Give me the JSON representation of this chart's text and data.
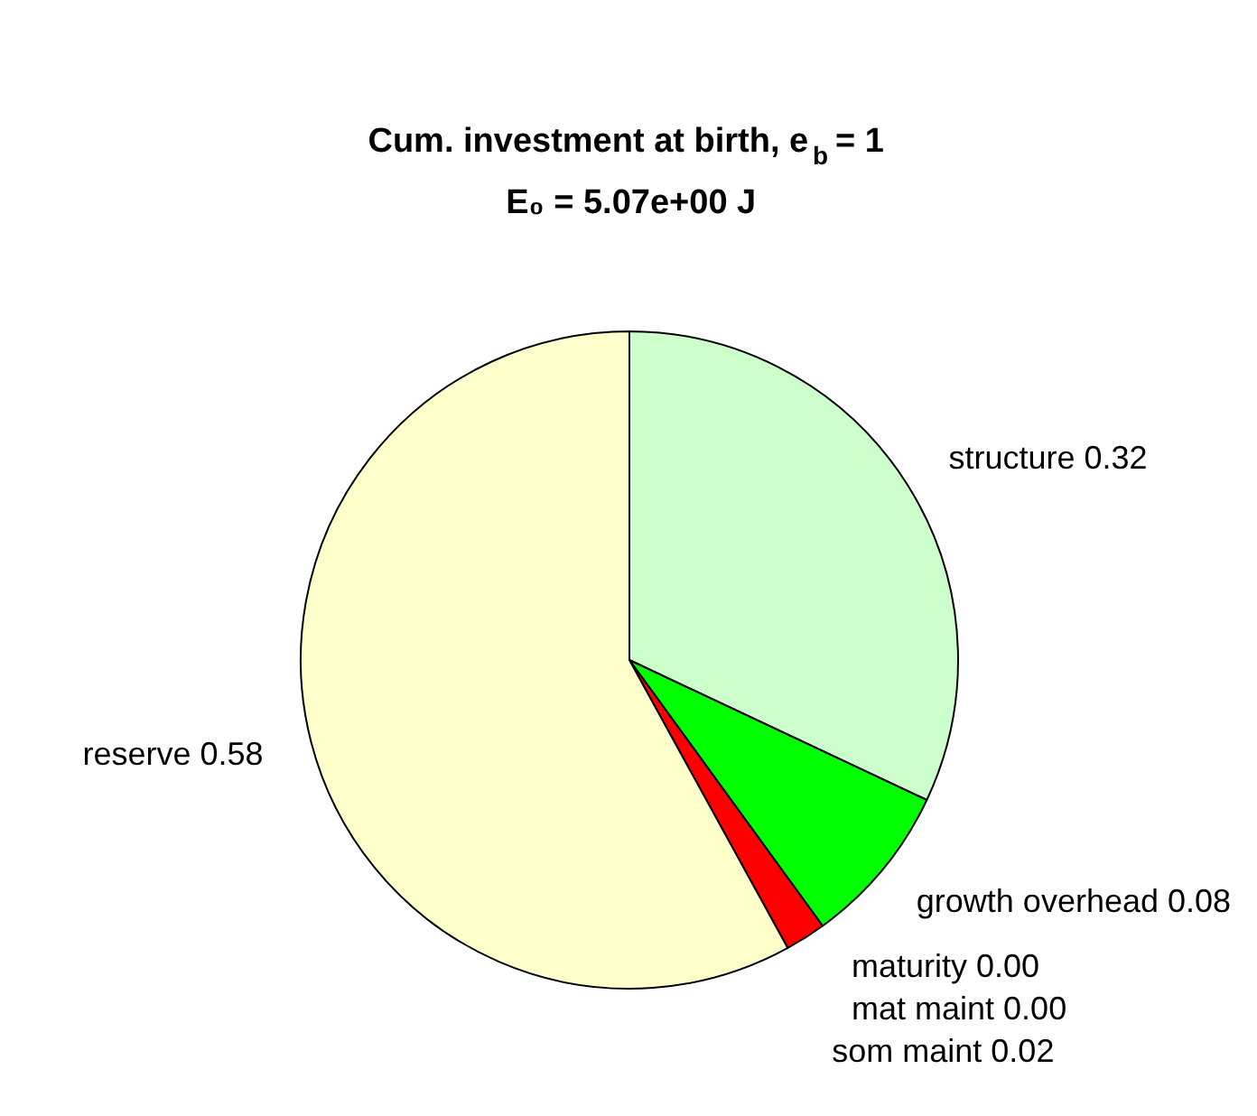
{
  "chart_data": {
    "type": "pie",
    "title": "Cum. investment at birth, e$_{b}$ = 1",
    "subtitle": "E₀ = 5.07e+00 J",
    "categories": [
      "structure",
      "growth overhead",
      "maturity",
      "mat maint",
      "som maint",
      "reserve"
    ],
    "values": [
      0.32,
      0.08,
      0.0,
      0.0,
      0.02,
      0.58
    ],
    "value_labels": [
      "0.32",
      "0.08",
      "0.00",
      "0.00",
      "0.02",
      "0.58"
    ],
    "colors": [
      "#ccffcc",
      "#00ff00",
      "#0000ff",
      "#000000",
      "#ff0000",
      "#ffffcc"
    ]
  }
}
